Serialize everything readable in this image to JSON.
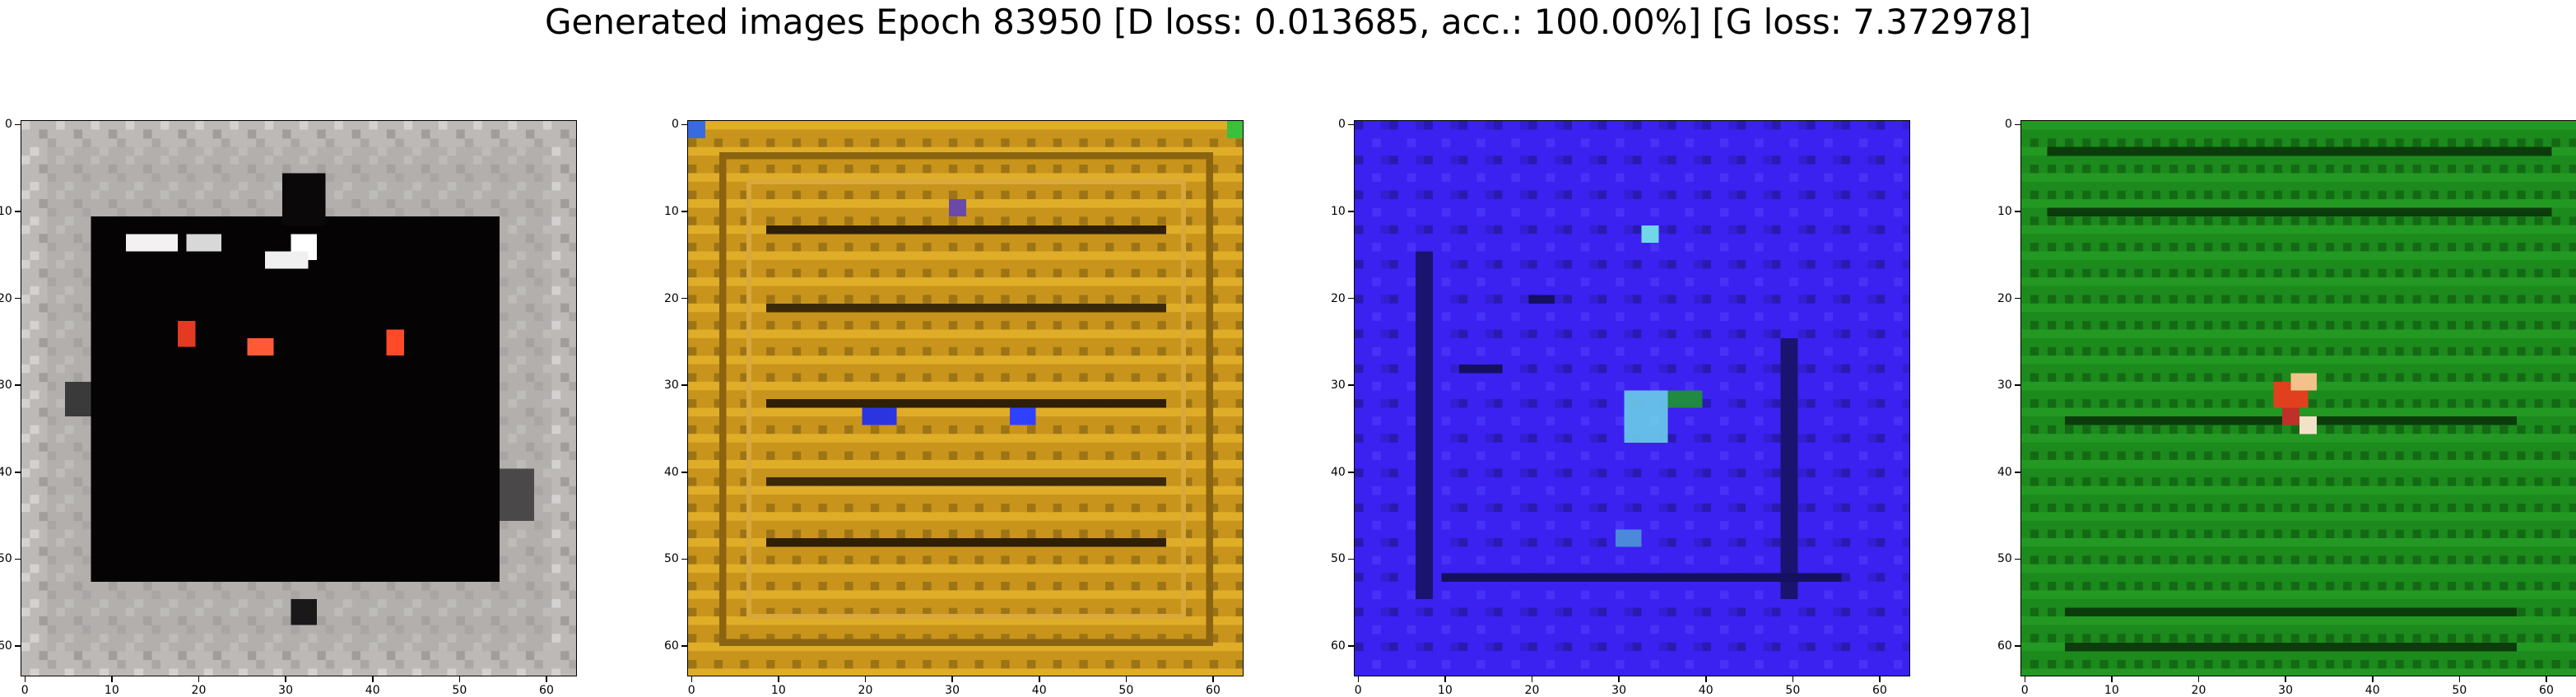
{
  "figure": {
    "title": "Generated images Epoch 83950 [D loss: 0.013685, acc.: 100.00%] [G loss: 7.372978]"
  },
  "panels": [
    {
      "id": "sample-1",
      "description_palette": "grey-white frame with black square and three red dots",
      "background": "#b9b6b3",
      "inner": "#050303",
      "accents": [
        "#e63a22",
        "#ff5a36",
        "#ffffff"
      ],
      "x_ticks": [
        "0",
        "10",
        "20",
        "30",
        "40",
        "50",
        "60"
      ],
      "y_ticks": [
        "0",
        "10",
        "20",
        "30",
        "40",
        "50",
        "60"
      ]
    },
    {
      "id": "sample-2",
      "background": "#c8941c",
      "inner": "#a9821a",
      "accents": [
        "#3a2a08",
        "#2b35e0",
        "#f4c232"
      ],
      "x_ticks": [
        "0",
        "10",
        "20",
        "30",
        "40",
        "50",
        "60"
      ],
      "y_ticks": [
        "0",
        "10",
        "20",
        "30",
        "40",
        "50",
        "60"
      ]
    },
    {
      "id": "sample-3",
      "background": "#3b22f0",
      "inner": "#2f1ce0",
      "accents": [
        "#151060",
        "#6fd7e8",
        "#1f8a40"
      ],
      "x_ticks": [
        "0",
        "10",
        "20",
        "30",
        "40",
        "50",
        "60"
      ],
      "y_ticks": [
        "0",
        "10",
        "20",
        "30",
        "40",
        "50",
        "60"
      ]
    },
    {
      "id": "sample-4",
      "background": "#1c8a1c",
      "inner": "#167a16",
      "accents": [
        "#0c3c0c",
        "#e0401e",
        "#f2e2c8"
      ],
      "x_ticks": [
        "0",
        "10",
        "20",
        "30",
        "40",
        "50",
        "60"
      ],
      "y_ticks": [
        "0",
        "10",
        "20",
        "30",
        "40",
        "50",
        "60"
      ]
    }
  ]
}
